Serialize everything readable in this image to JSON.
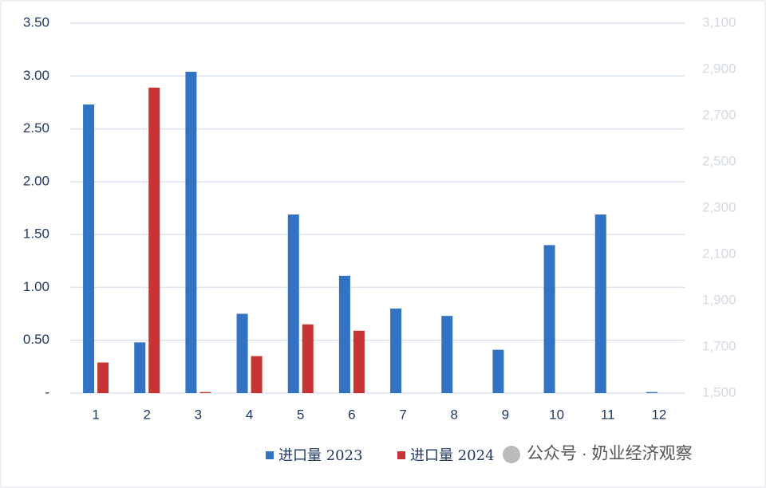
{
  "chart_data": {
    "type": "bar",
    "categories": [
      "1",
      "2",
      "3",
      "4",
      "5",
      "6",
      "7",
      "8",
      "9",
      "10",
      "11",
      "12"
    ],
    "series": [
      {
        "name": "进口量 2023",
        "color": "#3373c4",
        "values": [
          2.73,
          0.48,
          3.04,
          0.75,
          1.69,
          1.11,
          0.8,
          0.73,
          0.41,
          1.4,
          1.69,
          0.01
        ]
      },
      {
        "name": "进口量 2024",
        "color": "#c83333",
        "values": [
          0.29,
          2.89,
          0.01,
          0.35,
          0.65,
          0.59,
          null,
          null,
          null,
          null,
          null,
          null
        ]
      }
    ],
    "ylim": [
      0,
      3.5
    ],
    "yticks": [
      {
        "value": 0,
        "label": "-"
      },
      {
        "value": 0.5,
        "label": "0.50"
      },
      {
        "value": 1,
        "label": "1.00"
      },
      {
        "value": 1.5,
        "label": "1.50"
      },
      {
        "value": 2,
        "label": "2.00"
      },
      {
        "value": 2.5,
        "label": "2.50"
      },
      {
        "value": 3,
        "label": "3.00"
      },
      {
        "value": 3.5,
        "label": "3.50"
      }
    ],
    "y2lim": [
      1500,
      3100
    ],
    "y2ticks": [
      {
        "value": 1500,
        "label": "1,500"
      },
      {
        "value": 1700,
        "label": "1,700"
      },
      {
        "value": 1900,
        "label": "1,900"
      },
      {
        "value": 2100,
        "label": "2,100"
      },
      {
        "value": 2300,
        "label": "2,300"
      },
      {
        "value": 2500,
        "label": "2,500"
      },
      {
        "value": 2700,
        "label": "2,700"
      },
      {
        "value": 2900,
        "label": "2,900"
      },
      {
        "value": 3100,
        "label": "3,100"
      }
    ],
    "grid": true,
    "legend": "bottom",
    "watermark": "公众号 · 奶业经济观察"
  }
}
